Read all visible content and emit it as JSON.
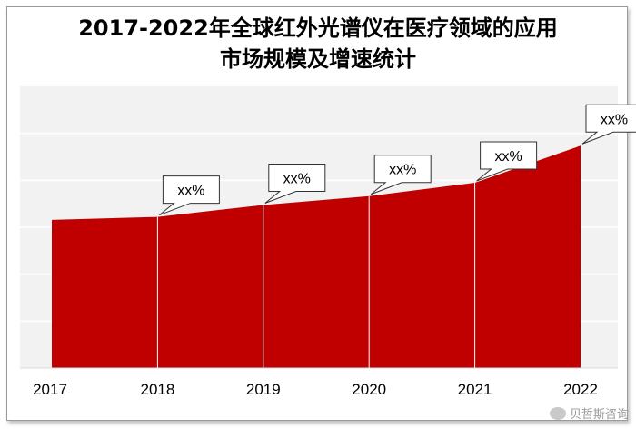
{
  "chart_data": {
    "type": "area",
    "title_line1": "2017-2022年全球红外光谱仪在医疗领域的应用",
    "title_line2": "市场规模及增速统计",
    "categories": [
      "2017",
      "2018",
      "2019",
      "2020",
      "2021",
      "2022"
    ],
    "values": [
      100,
      102,
      110,
      116,
      125,
      150
    ],
    "ylim": [
      0,
      190
    ],
    "grid": true,
    "series": [
      {
        "values": [
          100,
          102,
          110,
          116,
          125,
          150
        ]
      }
    ],
    "callouts": [
      {
        "index": 1,
        "label": "xx%"
      },
      {
        "index": 2,
        "label": "xx%"
      },
      {
        "index": 3,
        "label": "xx%"
      },
      {
        "index": 4,
        "label": "xx%"
      },
      {
        "index": 5,
        "label": "xx%"
      }
    ],
    "colors": {
      "area": "#c00000",
      "divider": "#ffffff",
      "plot_bg": "#f2f2f2",
      "grid": "#ffffff"
    }
  },
  "watermark": "贝哲斯咨询"
}
